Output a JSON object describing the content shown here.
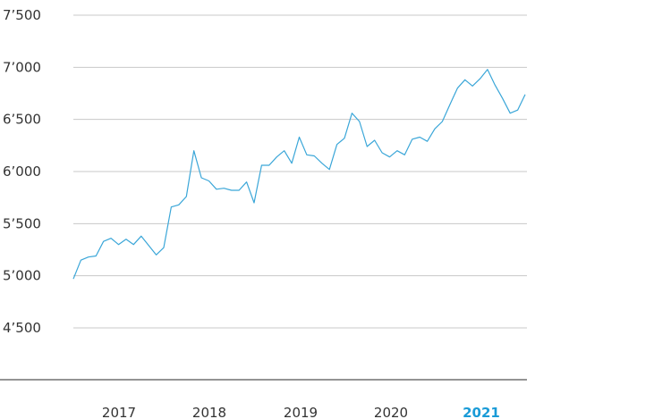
{
  "colors": {
    "line": "#3aa6d8",
    "highlight_label": "#1a9bd7",
    "grid": "#c8c8c8",
    "text": "#333333"
  },
  "chart_data": {
    "type": "line",
    "title": "",
    "xlabel": "",
    "ylabel": "",
    "ylim": [
      4500,
      7500
    ],
    "yticks": [
      {
        "value": 7500,
        "label": "7’500"
      },
      {
        "value": 7000,
        "label": "7’000"
      },
      {
        "value": 6500,
        "label": "6’500"
      },
      {
        "value": 6000,
        "label": "6’000"
      },
      {
        "value": 5500,
        "label": "5’500"
      },
      {
        "value": 5000,
        "label": "5’000"
      },
      {
        "value": 4500,
        "label": "4’500"
      }
    ],
    "xticks": [
      {
        "label": "2017",
        "highlight": false
      },
      {
        "label": "2018",
        "highlight": false
      },
      {
        "label": "2019",
        "highlight": false
      },
      {
        "label": "2020",
        "highlight": false
      },
      {
        "label": "2021",
        "highlight": true
      }
    ],
    "grid": true,
    "series": [
      {
        "values": [
          4970,
          5150,
          5180,
          5190,
          5330,
          5360,
          5300,
          5350,
          5300,
          5380,
          5290,
          5200,
          5270,
          5660,
          5680,
          5760,
          6200,
          5940,
          5910,
          5830,
          5840,
          5820,
          5820,
          5900,
          5700,
          6060,
          6060,
          6140,
          6200,
          6080,
          6330,
          6160,
          6150,
          6080,
          6020,
          6260,
          6320,
          6560,
          6480,
          6240,
          6300,
          6180,
          6140,
          6200,
          6160,
          6310,
          6330,
          6290,
          6410,
          6480,
          6640,
          6800,
          6880,
          6820,
          6890,
          6980,
          6830,
          6700,
          6560,
          6590,
          6740
        ]
      }
    ]
  }
}
